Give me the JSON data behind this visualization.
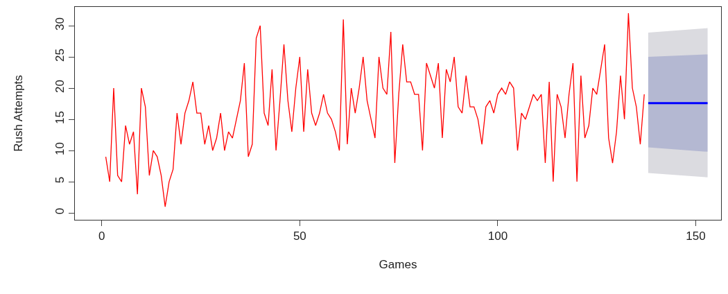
{
  "chart_data": {
    "type": "line",
    "xlabel": "Games",
    "ylabel": "Rush Attempts",
    "xlim": [
      -6.8,
      156.4
    ],
    "ylim": [
      -1.1,
      33
    ],
    "xticks": [
      0,
      50,
      100,
      150
    ],
    "yticks": [
      0,
      5,
      10,
      15,
      20,
      25,
      30
    ],
    "series": [
      {
        "color": "#ff0000",
        "x": [
          1,
          2,
          3,
          4,
          5,
          6,
          7,
          8,
          9,
          10,
          11,
          12,
          13,
          14,
          15,
          16,
          17,
          18,
          19,
          20,
          21,
          22,
          23,
          24,
          25,
          26,
          27,
          28,
          29,
          30,
          31,
          32,
          33,
          34,
          35,
          36,
          37,
          38,
          39,
          40,
          41,
          42,
          43,
          44,
          45,
          46,
          47,
          48,
          49,
          50,
          51,
          52,
          53,
          54,
          55,
          56,
          57,
          58,
          59,
          60,
          61,
          62,
          63,
          64,
          65,
          66,
          67,
          68,
          69,
          70,
          71,
          72,
          73,
          74,
          75,
          76,
          77,
          78,
          79,
          80,
          81,
          82,
          83,
          84,
          85,
          86,
          87,
          88,
          89,
          90,
          91,
          92,
          93,
          94,
          95,
          96,
          97,
          98,
          99,
          100,
          101,
          102,
          103,
          104,
          105,
          106,
          107,
          108,
          109,
          110,
          111,
          112,
          113,
          114,
          115,
          116,
          117,
          118,
          119,
          120,
          121,
          122,
          123,
          124,
          125,
          126,
          127,
          128,
          129,
          130,
          131,
          132,
          133,
          134,
          135,
          136,
          137
        ],
        "values": [
          9,
          5,
          20,
          6,
          5,
          14,
          11,
          13,
          3,
          20,
          17,
          6,
          10,
          9,
          6,
          1,
          5,
          7,
          16,
          11,
          16,
          18,
          21,
          16,
          16,
          11,
          14,
          10,
          12,
          16,
          10,
          13,
          12,
          15,
          18,
          24,
          9,
          11,
          28,
          30,
          16,
          14,
          23,
          10,
          18,
          27,
          18,
          13,
          20,
          25,
          13,
          23,
          16,
          14,
          16,
          19,
          16,
          15,
          13,
          10,
          31,
          11,
          20,
          16,
          20,
          25,
          18,
          15,
          12,
          25,
          20,
          19,
          29,
          8,
          19,
          27,
          21,
          21,
          19,
          19,
          10,
          24,
          22,
          20,
          24,
          12,
          23,
          21,
          25,
          17,
          16,
          22,
          17,
          17,
          15,
          11,
          17,
          18,
          16,
          19,
          20,
          19,
          21,
          20,
          10,
          16,
          15,
          17,
          19,
          18,
          19,
          8,
          21,
          5,
          19,
          17,
          12,
          19,
          24,
          5,
          22,
          12,
          14,
          20,
          19,
          23,
          27,
          12,
          8,
          13,
          22,
          15,
          32,
          20,
          17,
          11,
          19
        ]
      },
      {
        "color": "#dbdbe0",
        "x": [
          138,
          153
        ],
        "values": [
          null,
          null
        ],
        "lower": [
          6.4,
          5.7
        ],
        "upper": [
          28.9,
          29.6
        ]
      },
      {
        "color": "#0000ff",
        "x": [
          138,
          153
        ],
        "values": [
          17.6,
          17.6
        ],
        "lower": [
          10.5,
          9.8
        ],
        "upper": [
          25,
          25.4
        ]
      }
    ]
  }
}
